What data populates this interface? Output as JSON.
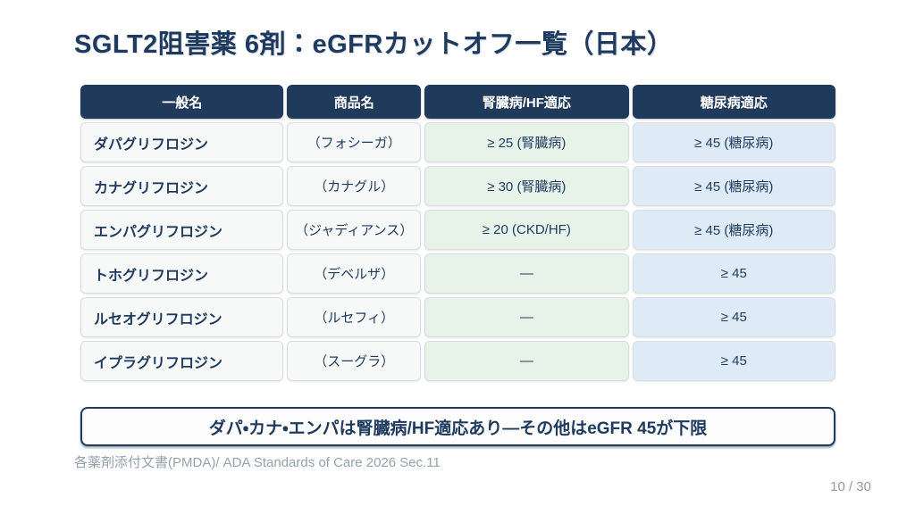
{
  "slide": {
    "title": "SGLT2阻害薬 6剤：eGFRカットオフ一覧（日本）",
    "callout": "ダパ・カナ・エンパは腎臓病/HF適応あり—その他はeGFR 45が下限",
    "source": "各薬剤添付文書(PMDA)/ ADA Standards of Care 2026 Sec.11",
    "page_number": "10 / 30"
  },
  "table": {
    "headers": {
      "generic": "一般名",
      "brand": "商品名",
      "renal_hf": "腎臓病/HF適応",
      "diabetes": "糖尿病適応"
    },
    "rows": [
      {
        "generic": "ダパグリフロジン",
        "brand": "（フォシーガ）",
        "renal_hf": "≥ 25 (腎臓病)",
        "diabetes": "≥ 45 (糖尿病)"
      },
      {
        "generic": "カナグリフロジン",
        "brand": "（カナグル）",
        "renal_hf": "≥ 30 (腎臓病)",
        "diabetes": "≥ 45 (糖尿病)"
      },
      {
        "generic": "エンパグリフロジン",
        "brand": "（ジャディアンス）",
        "renal_hf": "≥ 20 (CKD/HF)",
        "diabetes": "≥ 45 (糖尿病)"
      },
      {
        "generic": "トホグリフロジン",
        "brand": "（デベルザ）",
        "renal_hf": "—",
        "diabetes": "≥ 45"
      },
      {
        "generic": "ルセオグリフロジン",
        "brand": "（ルセフィ）",
        "renal_hf": "—",
        "diabetes": "≥ 45"
      },
      {
        "generic": "イプラグリフロジン",
        "brand": "（スーグラ）",
        "renal_hf": "—",
        "diabetes": "≥ 45"
      }
    ]
  },
  "colors": {
    "navy": "#1e3a5f",
    "header_bg": "#203a5c",
    "generic_brand_cell_bg": "#f7f8f8",
    "renal_cell_bg": "#e7f3e8",
    "diabetes_cell_bg": "#deebf7",
    "cell_border": "#d9dee3",
    "muted_text": "#94a3ab",
    "background": "#ffffff"
  }
}
